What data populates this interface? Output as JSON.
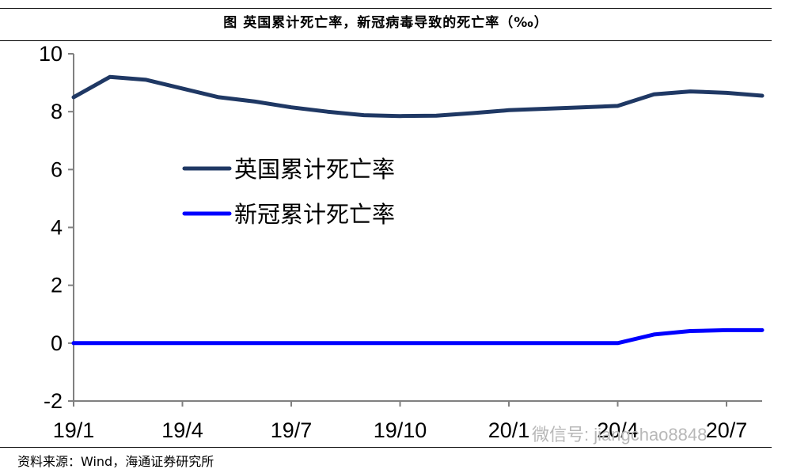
{
  "title": "图  英国累计死亡率，新冠病毒导致的死亡率（‰）",
  "source": "资料来源：Wind，海通证券研究所",
  "watermark": "微信号: jiangchao8848",
  "chart_data": {
    "type": "line",
    "title": "图  英国累计死亡率，新冠病毒导致的死亡率（‰）",
    "ylabel": "",
    "xlabel": "",
    "ylim": [
      -2,
      10
    ],
    "yticks": [
      "-2",
      "0",
      "2",
      "4",
      "6",
      "8",
      "10"
    ],
    "xticks": [
      "19/1",
      "19/4",
      "19/7",
      "19/10",
      "20/1",
      "20/4",
      "20/7"
    ],
    "legend": "center-left",
    "grid": false,
    "x": [
      "2019-01",
      "2019-02",
      "2019-03",
      "2019-04",
      "2019-05",
      "2019-06",
      "2019-07",
      "2019-08",
      "2019-09",
      "2019-10",
      "2019-11",
      "2019-12",
      "2020-01",
      "2020-02",
      "2020-03",
      "2020-04",
      "2020-05",
      "2020-06",
      "2020-07",
      "2020-08"
    ],
    "series": [
      {
        "name": "英国累计死亡率",
        "color": "#1f3864",
        "values": [
          8.5,
          9.2,
          9.1,
          8.8,
          8.5,
          8.35,
          8.15,
          8.0,
          7.88,
          7.85,
          7.86,
          7.95,
          8.05,
          8.1,
          8.15,
          8.2,
          8.6,
          8.7,
          8.65,
          8.55
        ]
      },
      {
        "name": "新冠累计死亡率",
        "color": "#0000ff",
        "values": [
          0,
          0,
          0,
          0,
          0,
          0,
          0,
          0,
          0,
          0,
          0,
          0,
          0,
          0,
          0,
          0,
          0.3,
          0.42,
          0.45,
          0.45
        ]
      }
    ]
  }
}
